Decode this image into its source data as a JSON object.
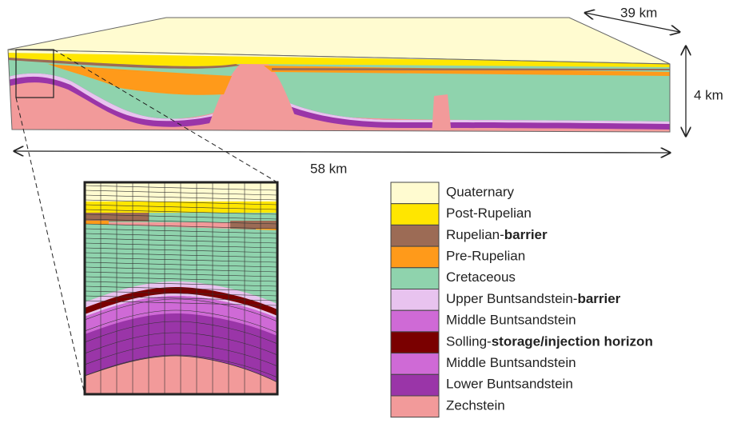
{
  "dimensions": {
    "depth_width": "39 km",
    "height": "4 km",
    "length": "58 km"
  },
  "legend": [
    {
      "color": "#fffbd0",
      "text": "Quaternary"
    },
    {
      "color": "#ffe600",
      "text": "Post-Rupelian"
    },
    {
      "color": "#9c6b55",
      "text": "Rupelian-",
      "bold": "barrier"
    },
    {
      "color": "#ff9a1a",
      "text": "Pre-Rupelian"
    },
    {
      "color": "#8fd3ad",
      "text": "Cretaceous"
    },
    {
      "color": "#e8c3ef",
      "text": "Upper Buntsandstein-",
      "bold": "barrier"
    },
    {
      "color": "#cf6ad6",
      "text": "Middle Buntsandstein"
    },
    {
      "color": "#7a0000",
      "text": "Solling-",
      "bold": "storage/injection horizon"
    },
    {
      "color": "#cf6ad6",
      "text": "Middle Buntsandstein"
    },
    {
      "color": "#9a35a8",
      "text": "Lower Buntsandstein"
    },
    {
      "color": "#f29a9a",
      "text": "Zechstein"
    }
  ]
}
